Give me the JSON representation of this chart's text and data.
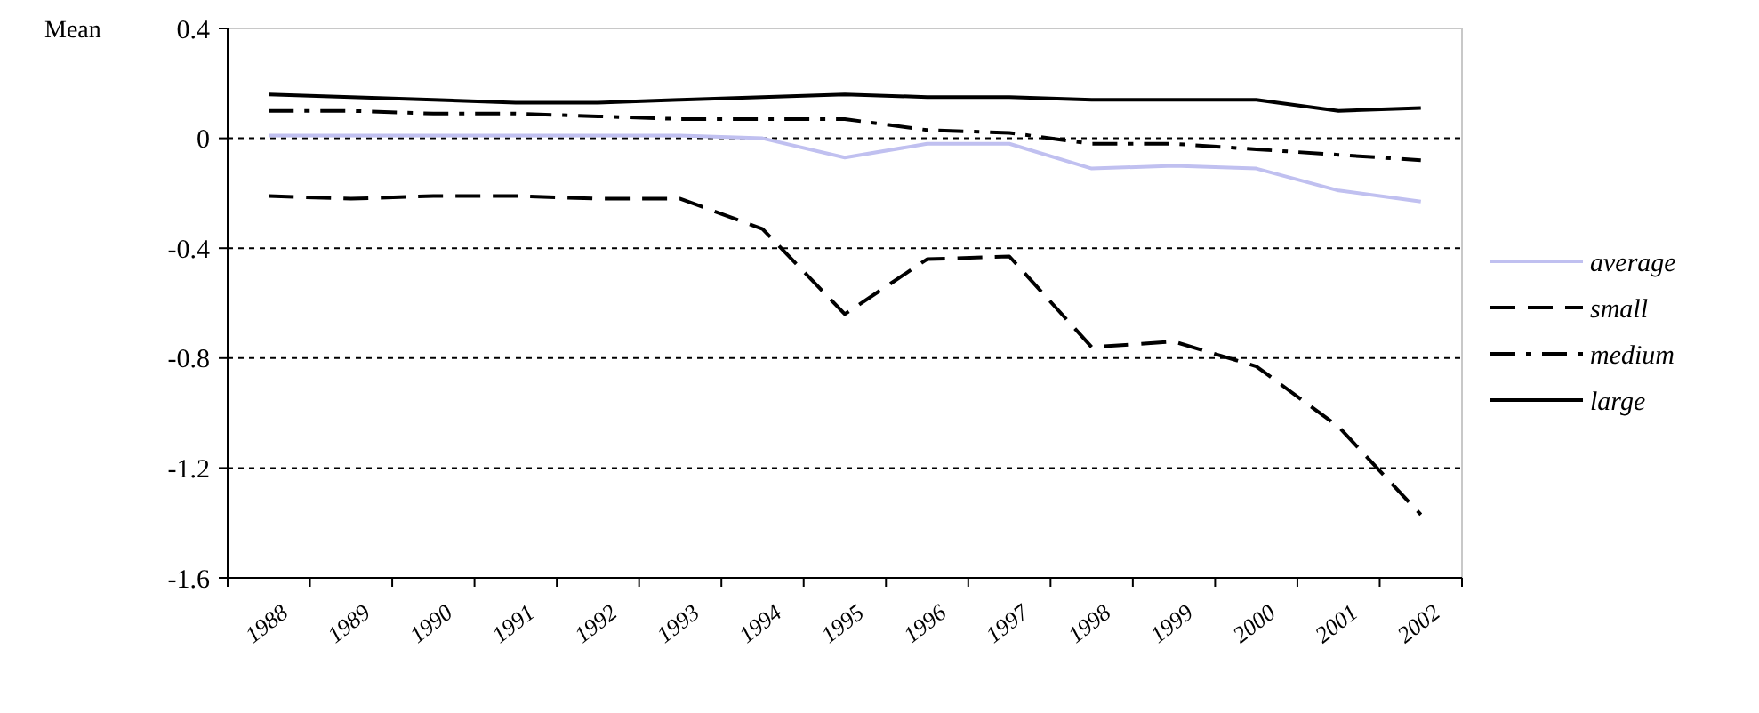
{
  "chart_data": {
    "type": "line",
    "ylabel": "Mean",
    "categories": [
      "1988",
      "1989",
      "1990",
      "1991",
      "1992",
      "1993",
      "1994",
      "1995",
      "1996",
      "1997",
      "1998",
      "1999",
      "2000",
      "2001",
      "2002"
    ],
    "series": [
      {
        "name": "average",
        "color": "#c0c0f0",
        "line_style": "solid",
        "values": [
          0.01,
          0.01,
          0.01,
          0.01,
          0.01,
          0.01,
          0.0,
          -0.07,
          -0.02,
          -0.02,
          -0.11,
          -0.1,
          -0.11,
          -0.19,
          -0.23
        ]
      },
      {
        "name": "small",
        "color": "#000000",
        "line_style": "dashed",
        "values": [
          -0.21,
          -0.22,
          -0.21,
          -0.21,
          -0.22,
          -0.22,
          -0.33,
          -0.64,
          -0.44,
          -0.43,
          -0.76,
          -0.74,
          -0.83,
          -1.05,
          -1.37
        ]
      },
      {
        "name": "medium",
        "color": "#000000",
        "line_style": "dashdot",
        "values": [
          0.1,
          0.1,
          0.09,
          0.09,
          0.08,
          0.07,
          0.07,
          0.07,
          0.03,
          0.02,
          -0.02,
          -0.02,
          -0.04,
          -0.06,
          -0.08
        ]
      },
      {
        "name": "large",
        "color": "#000000",
        "line_style": "solid",
        "values": [
          0.16,
          0.15,
          0.14,
          0.13,
          0.13,
          0.14,
          0.15,
          0.16,
          0.15,
          0.15,
          0.14,
          0.14,
          0.14,
          0.1,
          0.11
        ]
      }
    ],
    "ylim": [
      -1.6,
      0.4
    ],
    "yticks": [
      -1.6,
      -1.2,
      -0.8,
      -0.4,
      0,
      0.4
    ],
    "grid": "y",
    "legend": "right",
    "marker": "none"
  }
}
